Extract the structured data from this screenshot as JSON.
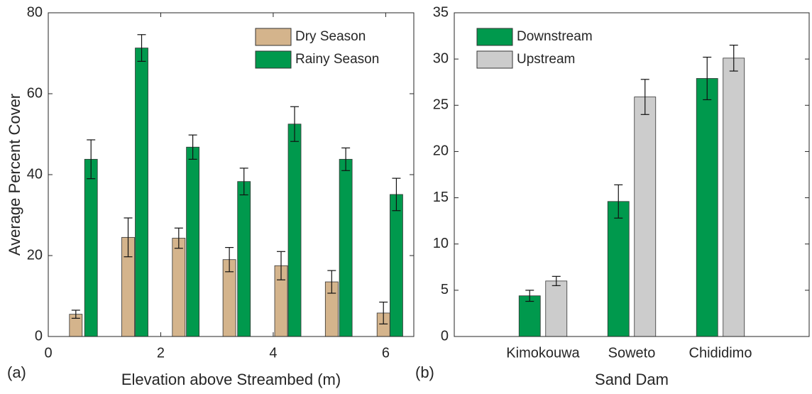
{
  "chart_data": [
    {
      "type": "bar",
      "panel": "(a)",
      "x_label": "Elevation above Streambed (m)",
      "y_label": "Average Percent Cover",
      "xlim": [
        0,
        6.5
      ],
      "xticks": [
        0,
        2,
        4,
        6
      ],
      "ylim": [
        0,
        80
      ],
      "yticks": [
        0,
        20,
        40,
        60,
        80
      ],
      "legend": "upper right",
      "series": [
        {
          "name": "Dry Season",
          "color": "#d4b48c",
          "x": [
            0.49,
            1.42,
            2.32,
            3.22,
            4.14,
            5.04,
            5.96
          ],
          "values": [
            5.5,
            24.5,
            24.3,
            19,
            17.5,
            13.5,
            5.8
          ],
          "errors": [
            1,
            4.8,
            2.5,
            3,
            3.5,
            2.8,
            2.7
          ]
        },
        {
          "name": "Rainy Season",
          "color": "#00994d",
          "x": [
            0.76,
            1.66,
            2.57,
            3.48,
            4.38,
            5.29,
            6.19
          ],
          "values": [
            43.8,
            71.3,
            46.8,
            38.3,
            52.5,
            43.8,
            35.1
          ],
          "errors": [
            4.8,
            3.3,
            3,
            3.3,
            4.3,
            2.8,
            4
          ]
        }
      ]
    },
    {
      "type": "bar",
      "panel": "(b)",
      "x_label": "Sand Dam",
      "categories": [
        "Kimokouwa",
        "Soweto",
        "Chididimo"
      ],
      "ylim": [
        0,
        35
      ],
      "yticks": [
        0,
        5,
        10,
        15,
        20,
        25,
        30,
        35
      ],
      "legend": "upper left",
      "series": [
        {
          "name": "Downstream",
          "color": "#00994d",
          "values": [
            4.4,
            14.6,
            27.9
          ],
          "errors": [
            0.6,
            1.8,
            2.3
          ]
        },
        {
          "name": "Upstream",
          "color": "#cccccc",
          "values": [
            6.0,
            25.9,
            30.1
          ],
          "errors": [
            0.5,
            1.9,
            1.4
          ]
        }
      ]
    }
  ]
}
